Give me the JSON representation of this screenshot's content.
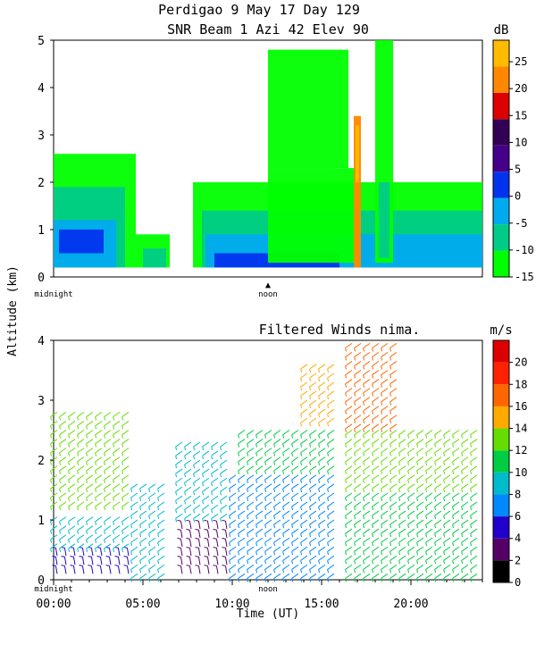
{
  "header": {
    "title_line1": "Perdigao   9 May 17 Day 129",
    "title_line2": "SNR Beam  1 Azi   42 Elev 90"
  },
  "shared_ylabel": "Altitude (km)",
  "markers": {
    "midnight": "midnight",
    "noon": "noon"
  },
  "chart_data": [
    {
      "type": "heatmap",
      "title": "SNR Beam  1 Azi   42 Elev 90",
      "ylabel": "Altitude (km)",
      "ylim": [
        0,
        5
      ],
      "yticks": [
        "0",
        "1",
        "2",
        "3",
        "4",
        "5"
      ],
      "xlim_hours": [
        0,
        24
      ],
      "colorbar": {
        "unit": "dB",
        "range": [
          -15,
          29
        ],
        "ticks": [
          "25",
          "20",
          "15",
          "10",
          "5",
          "0",
          "-5",
          "-10",
          "-15"
        ],
        "colors": [
          "#00ff00",
          "#00cc88",
          "#00aaee",
          "#0033ee",
          "#440088",
          "#330055",
          "#dd0000",
          "#ff8800",
          "#ffbb00"
        ]
      },
      "rows": [
        {
          "t0": 0,
          "t1": 4.6,
          "h0": 0.2,
          "h1": 2.6,
          "level": 0
        },
        {
          "t0": 0,
          "t1": 4.0,
          "h0": 0.2,
          "h1": 1.9,
          "level": 1
        },
        {
          "t0": 0,
          "t1": 3.5,
          "h0": 0.2,
          "h1": 1.2,
          "level": 2
        },
        {
          "t0": 0.3,
          "t1": 2.8,
          "h0": 0.5,
          "h1": 1.0,
          "level": 3
        },
        {
          "t0": 4.6,
          "t1": 6.5,
          "h0": 0.2,
          "h1": 0.9,
          "level": 0
        },
        {
          "t0": 5.0,
          "t1": 6.3,
          "h0": 0.2,
          "h1": 0.6,
          "level": 1
        },
        {
          "t0": 7.8,
          "t1": 24,
          "h0": 0.2,
          "h1": 2.0,
          "level": 0
        },
        {
          "t0": 8.3,
          "t1": 24,
          "h0": 0.2,
          "h1": 1.4,
          "level": 1
        },
        {
          "t0": 8.5,
          "t1": 24,
          "h0": 0.2,
          "h1": 0.9,
          "level": 2
        },
        {
          "t0": 9.0,
          "t1": 16.0,
          "h0": 0.2,
          "h1": 0.5,
          "level": 3
        },
        {
          "t0": 12.0,
          "t1": 17.0,
          "h0": 0.3,
          "h1": 2.3,
          "level": 0
        },
        {
          "t0": 12.0,
          "t1": 16.5,
          "h0": 2.3,
          "h1": 4.8,
          "level": 0
        },
        {
          "t0": 16.8,
          "t1": 17.2,
          "h0": 0.2,
          "h1": 3.4,
          "level": 7
        },
        {
          "t0": 16.9,
          "t1": 17.1,
          "h0": 2.0,
          "h1": 3.2,
          "level": 8
        },
        {
          "t0": 18.0,
          "t1": 19.0,
          "h0": 0.3,
          "h1": 5.0,
          "level": 0
        },
        {
          "t0": 18.2,
          "t1": 18.8,
          "h0": 0.4,
          "h1": 2.0,
          "level": 1
        }
      ],
      "xtick_labels": []
    },
    {
      "type": "wind-barbs",
      "title": "Filtered Winds nima.",
      "xlabel": "Time (UT)",
      "ylabel": "Altitude (km)",
      "ylim": [
        0,
        4
      ],
      "yticks": [
        "0",
        "1",
        "2",
        "3",
        "4"
      ],
      "xlim_hours": [
        0,
        24
      ],
      "xtick_labels": [
        "00:00",
        "05:00",
        "10:00",
        "15:00",
        "20:00"
      ],
      "colorbar": {
        "unit": "m/s",
        "range": [
          0,
          22
        ],
        "ticks": [
          "20",
          "18",
          "16",
          "14",
          "12",
          "10",
          "8",
          "6",
          "4",
          "2",
          "0"
        ],
        "colors": [
          "#000000",
          "#550066",
          "#2200cc",
          "#0088ff",
          "#00bbcc",
          "#00cc44",
          "#66dd00",
          "#ffaa00",
          "#ff6600",
          "#ff2200",
          "#dd0000"
        ]
      },
      "speed_levels": [
        {
          "t0": 0,
          "t1": 4.5,
          "h0": 0.0,
          "h1": 0.5,
          "speed": 4
        },
        {
          "t0": 0,
          "t1": 4.5,
          "h0": 0.5,
          "h1": 1.2,
          "speed": 9
        },
        {
          "t0": 0,
          "t1": 4.5,
          "h0": 1.2,
          "h1": 2.8,
          "speed": 13
        },
        {
          "t0": 4.5,
          "t1": 6.5,
          "h0": 0.0,
          "h1": 1.7,
          "speed": 8
        },
        {
          "t0": 7.0,
          "t1": 10.0,
          "h0": 0.0,
          "h1": 1.0,
          "speed": 3
        },
        {
          "t0": 7.0,
          "t1": 10.0,
          "h0": 1.0,
          "h1": 2.3,
          "speed": 8
        },
        {
          "t0": 10.0,
          "t1": 16.0,
          "h0": 0.0,
          "h1": 1.8,
          "speed": 7
        },
        {
          "t0": 10.5,
          "t1": 16.0,
          "h0": 1.8,
          "h1": 2.6,
          "speed": 11
        },
        {
          "t0": 14.0,
          "t1": 16.0,
          "h0": 2.6,
          "h1": 3.6,
          "speed": 14
        },
        {
          "t0": 16.5,
          "t1": 24.0,
          "h0": 0.0,
          "h1": 1.5,
          "speed": 11
        },
        {
          "t0": 16.5,
          "t1": 24.0,
          "h0": 1.5,
          "h1": 2.5,
          "speed": 13
        },
        {
          "t0": 16.5,
          "t1": 19.5,
          "h0": 2.5,
          "h1": 4.0,
          "speed": 17
        }
      ]
    }
  ]
}
